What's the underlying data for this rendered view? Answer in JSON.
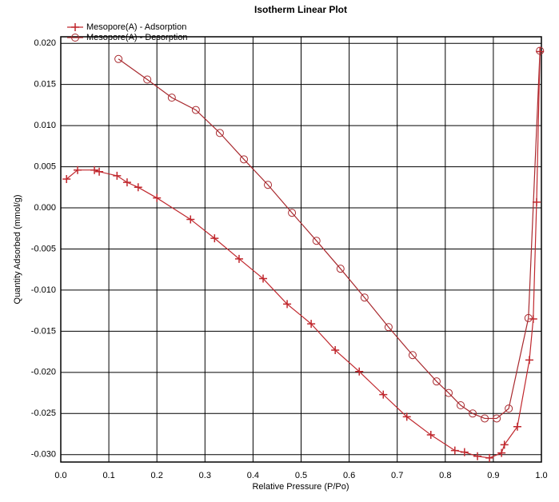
{
  "chart_data": {
    "type": "line",
    "title": "Isotherm Linear Plot",
    "x_label": "Relative Pressure (P/Po)",
    "y_label": "Quantity Adsorbed (mmol/g)",
    "xlim": [
      0,
      1
    ],
    "ylim": [
      -0.0309,
      0.0208
    ],
    "xticks": [
      {
        "value": 0,
        "label": "0.0"
      },
      0.1,
      0.2,
      0.3,
      0.4,
      0.5,
      0.6,
      0.7,
      0.8,
      0.9,
      {
        "value": 1,
        "label": "1.0"
      }
    ],
    "yticks": [
      {
        "value": 0.02,
        "label": "0.020"
      },
      0.015,
      {
        "value": 0.01,
        "label": "0.010"
      },
      0.005,
      {
        "value": 0,
        "label": "0.000"
      },
      -0.005,
      {
        "value": -0.01,
        "label": "-0.010"
      },
      -0.015,
      {
        "value": -0.02,
        "label": "-0.020"
      },
      -0.025,
      {
        "value": -0.03,
        "label": "-0.030"
      }
    ],
    "grid": true,
    "legend": "top-left",
    "series": [
      {
        "name": "Mesopore(A) - Adsorption",
        "color": "#c0272d",
        "marker": "plus",
        "x": [
          0.012,
          0.035,
          0.07,
          0.08,
          0.117,
          0.138,
          0.161,
          0.2,
          0.27,
          0.32,
          0.371,
          0.421,
          0.471,
          0.521,
          0.571,
          0.621,
          0.671,
          0.72,
          0.77,
          0.82,
          0.84,
          0.867,
          0.892,
          0.917,
          0.923,
          0.95,
          0.975,
          0.983,
          0.99,
          0.997
        ],
        "values": [
          0.0035,
          0.0046,
          0.0046,
          0.0044,
          0.0039,
          0.0031,
          0.0025,
          0.0012,
          -0.0014,
          -0.0037,
          -0.0062,
          -0.0086,
          -0.0117,
          -0.0141,
          -0.0173,
          -0.0199,
          -0.0227,
          -0.0254,
          -0.0276,
          -0.0295,
          -0.0297,
          -0.0302,
          -0.0304,
          -0.0298,
          -0.0288,
          -0.0266,
          -0.0185,
          -0.0135,
          0.0007,
          0.019
        ]
      },
      {
        "name": "Mesopore(A) - Desorption",
        "color": "#a8292e",
        "marker": "circle",
        "x": [
          0.12,
          0.18,
          0.231,
          0.281,
          0.331,
          0.381,
          0.431,
          0.481,
          0.532,
          0.582,
          0.632,
          0.682,
          0.732,
          0.782,
          0.807,
          0.832,
          0.857,
          0.882,
          0.907,
          0.932,
          0.973,
          0.997
        ],
        "values": [
          0.0181,
          0.0156,
          0.0134,
          0.0119,
          0.0091,
          0.0059,
          0.0028,
          -0.0006,
          -0.004,
          -0.0074,
          -0.0109,
          -0.0145,
          -0.0179,
          -0.0211,
          -0.0225,
          -0.024,
          -0.025,
          -0.0256,
          -0.0256,
          -0.0244,
          -0.0134,
          0.0191
        ]
      }
    ]
  }
}
